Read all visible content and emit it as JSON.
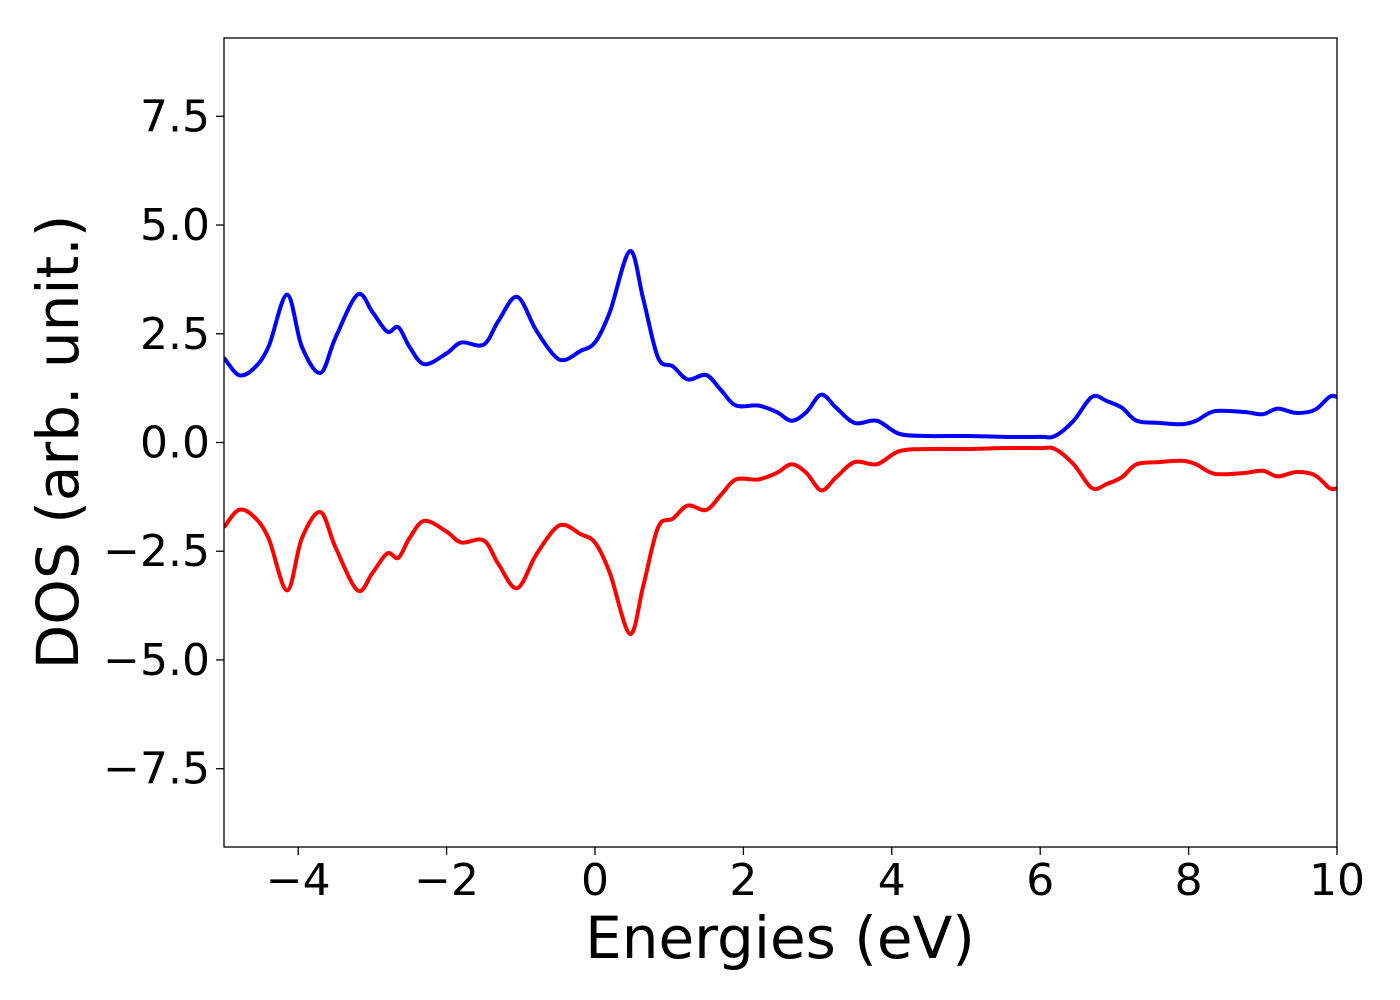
{
  "chart_data": {
    "type": "line",
    "xlabel": "Energies (eV)",
    "ylabel": "DOS (arb. unit.)",
    "xlim": [
      -5,
      10
    ],
    "ylim": [
      -9.3,
      9.3
    ],
    "x_ticks": [
      -4,
      -2,
      0,
      2,
      4,
      6,
      8,
      10
    ],
    "x_tick_labels": [
      "−4",
      "−2",
      "0",
      "2",
      "4",
      "6",
      "8",
      "10"
    ],
    "y_ticks": [
      -7.5,
      -5.0,
      -2.5,
      0.0,
      2.5,
      5.0,
      7.5
    ],
    "y_tick_labels": [
      "−7.5",
      "−5.0",
      "−2.5",
      "0.0",
      "2.5",
      "5.0",
      "7.5"
    ],
    "grid": false,
    "series": [
      {
        "color": "#0000ff",
        "x": [
          -5.0,
          -4.8,
          -4.6,
          -4.4,
          -4.15,
          -3.95,
          -3.7,
          -3.5,
          -3.2,
          -3.0,
          -2.8,
          -2.65,
          -2.5,
          -2.3,
          -2.0,
          -1.8,
          -1.5,
          -1.3,
          -1.05,
          -0.8,
          -0.55,
          -0.4,
          -0.2,
          0.0,
          0.2,
          0.47,
          0.65,
          0.85,
          1.05,
          1.25,
          1.5,
          1.7,
          1.9,
          2.2,
          2.45,
          2.65,
          2.85,
          3.05,
          3.25,
          3.5,
          3.8,
          4.1,
          4.5,
          5.0,
          5.5,
          6.0,
          6.2,
          6.45,
          6.7,
          6.9,
          7.1,
          7.3,
          7.6,
          7.9,
          8.1,
          8.35,
          8.75,
          9.0,
          9.2,
          9.45,
          9.7,
          9.9,
          10.0
        ],
        "y": [
          1.95,
          1.55,
          1.7,
          2.2,
          3.4,
          2.2,
          1.6,
          2.4,
          3.4,
          3.0,
          2.55,
          2.65,
          2.2,
          1.8,
          2.05,
          2.3,
          2.25,
          2.8,
          3.35,
          2.6,
          2.0,
          1.9,
          2.1,
          2.3,
          3.0,
          4.4,
          3.3,
          1.95,
          1.75,
          1.45,
          1.55,
          1.2,
          0.85,
          0.85,
          0.7,
          0.5,
          0.7,
          1.1,
          0.8,
          0.45,
          0.5,
          0.2,
          0.15,
          0.15,
          0.13,
          0.13,
          0.15,
          0.5,
          1.05,
          0.95,
          0.8,
          0.5,
          0.45,
          0.42,
          0.5,
          0.72,
          0.7,
          0.65,
          0.78,
          0.68,
          0.75,
          1.05,
          1.05
        ]
      },
      {
        "color": "#ff0000",
        "x": [
          -5.0,
          -4.8,
          -4.6,
          -4.4,
          -4.15,
          -3.95,
          -3.7,
          -3.5,
          -3.2,
          -3.0,
          -2.8,
          -2.65,
          -2.5,
          -2.3,
          -2.0,
          -1.8,
          -1.5,
          -1.3,
          -1.05,
          -0.8,
          -0.55,
          -0.4,
          -0.2,
          0.0,
          0.2,
          0.47,
          0.65,
          0.85,
          1.05,
          1.25,
          1.5,
          1.7,
          1.9,
          2.2,
          2.45,
          2.65,
          2.85,
          3.05,
          3.25,
          3.5,
          3.8,
          4.1,
          4.5,
          5.0,
          5.5,
          6.0,
          6.2,
          6.45,
          6.7,
          6.9,
          7.1,
          7.3,
          7.6,
          7.9,
          8.1,
          8.35,
          8.75,
          9.0,
          9.2,
          9.45,
          9.7,
          9.9,
          10.0
        ],
        "y": [
          -1.95,
          -1.55,
          -1.7,
          -2.2,
          -3.4,
          -2.2,
          -1.6,
          -2.4,
          -3.4,
          -3.0,
          -2.55,
          -2.65,
          -2.2,
          -1.8,
          -2.05,
          -2.3,
          -2.25,
          -2.8,
          -3.35,
          -2.6,
          -2.0,
          -1.9,
          -2.1,
          -2.3,
          -3.0,
          -4.4,
          -3.3,
          -1.95,
          -1.75,
          -1.45,
          -1.55,
          -1.2,
          -0.85,
          -0.85,
          -0.7,
          -0.5,
          -0.7,
          -1.1,
          -0.8,
          -0.45,
          -0.5,
          -0.2,
          -0.15,
          -0.15,
          -0.13,
          -0.13,
          -0.15,
          -0.5,
          -1.05,
          -0.95,
          -0.8,
          -0.5,
          -0.45,
          -0.42,
          -0.5,
          -0.72,
          -0.7,
          -0.65,
          -0.78,
          -0.68,
          -0.75,
          -1.05,
          -1.05
        ]
      }
    ]
  }
}
